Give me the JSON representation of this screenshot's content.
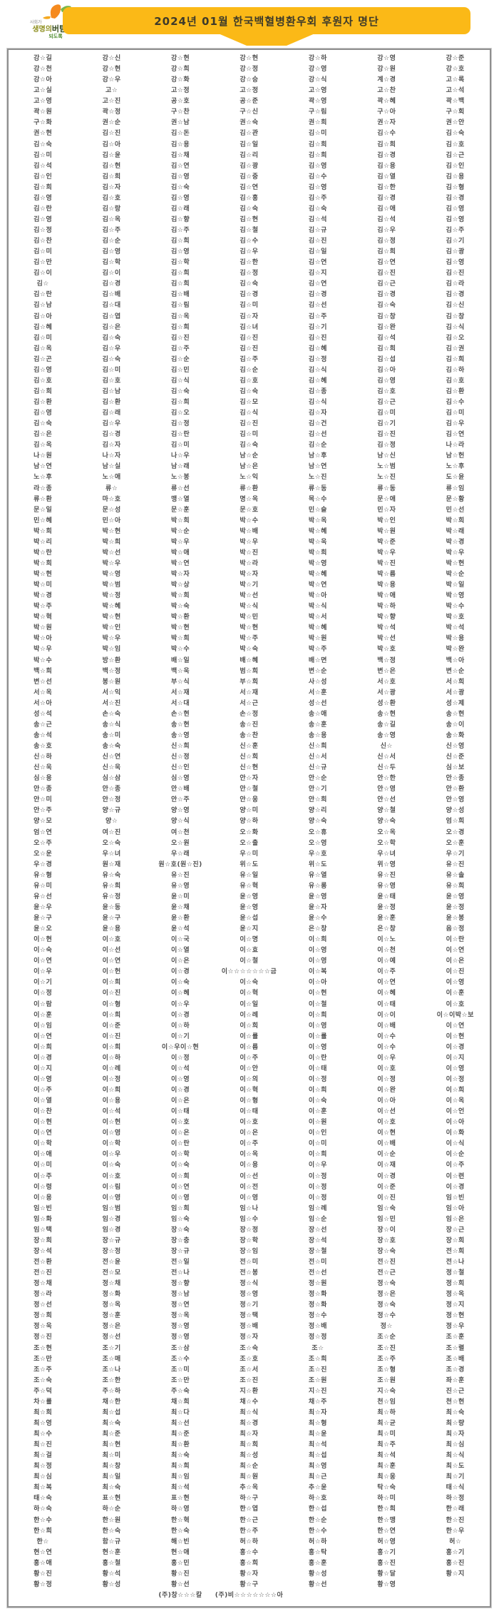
{
  "header": {
    "title": "2024년 01월 한국백혈병환우회 후원자 명단"
  },
  "logo": {
    "text_small": "사회가",
    "text_main_1": "생명의",
    "text_main_2": "버팀목",
    "text_main_3": "이",
    "text_bottom": "되도록"
  },
  "table": {
    "rows": [
      [
        "강☆길",
        "강☆신",
        "강☆현",
        "강☆현",
        "강☆하",
        "강☆영",
        "강☆준"
      ],
      [
        "강☆천",
        "강☆현",
        "강☆희",
        "강☆정",
        "강☆영",
        "강☆원",
        "강☆호"
      ],
      [
        "강☆아",
        "강☆우",
        "강☆화",
        "강☆승",
        "강☆식",
        "계☆경",
        "고☆록"
      ],
      [
        "고☆실",
        "고☆",
        "고☆정",
        "고☆정",
        "고☆영",
        "고☆찬",
        "고☆석"
      ],
      [
        "고☆영",
        "고☆진",
        "공☆호",
        "공☆준",
        "곽☆영",
        "곽☆혜",
        "곽☆백"
      ],
      [
        "곽☆원",
        "곽☆정",
        "구☆찬",
        "구☆신",
        "구☆림",
        "구☆아",
        "구☆회"
      ],
      [
        "구☆화",
        "권☆순",
        "권☆남",
        "권☆숙",
        "권☆희",
        "권☆자",
        "권☆안"
      ],
      [
        "권☆현",
        "김☆진",
        "김☆돈",
        "김☆관",
        "김☆미",
        "김☆수",
        "김☆숙"
      ],
      [
        "김☆숙",
        "김☆아",
        "김☆용",
        "김☆일",
        "김☆희",
        "김☆희",
        "김☆호"
      ],
      [
        "김☆미",
        "김☆윤",
        "김☆채",
        "김☆리",
        "김☆희",
        "김☆경",
        "김☆근"
      ],
      [
        "김☆석",
        "김☆현",
        "김☆연",
        "김☆광",
        "김☆영",
        "김☆용",
        "김☆인"
      ],
      [
        "김☆인",
        "김☆희",
        "김☆영",
        "김☆중",
        "김☆수",
        "김☆열",
        "김☆용"
      ],
      [
        "김☆희",
        "김☆자",
        "김☆숙",
        "김☆연",
        "김☆영",
        "김☆한",
        "김☆형"
      ],
      [
        "김☆영",
        "김☆호",
        "김☆영",
        "김☆홍",
        "김☆주",
        "김☆경",
        "김☆경"
      ],
      [
        "김☆란",
        "김☆랑",
        "김☆래",
        "김☆숙",
        "김☆숙",
        "김☆애",
        "김☆영"
      ],
      [
        "김☆영",
        "김☆옥",
        "김☆향",
        "김☆현",
        "김☆석",
        "김☆석",
        "김☆영"
      ],
      [
        "김☆정",
        "김☆주",
        "김☆주",
        "김☆철",
        "김☆규",
        "김☆우",
        "김☆주"
      ],
      [
        "김☆찬",
        "김☆순",
        "김☆희",
        "김☆수",
        "김☆진",
        "김☆정",
        "김☆기"
      ],
      [
        "김☆미",
        "김☆영",
        "김☆영",
        "김☆우",
        "김☆일",
        "김☆희",
        "김☆광"
      ],
      [
        "김☆만",
        "김☆학",
        "김☆학",
        "김☆한",
        "김☆연",
        "김☆연",
        "김☆영"
      ],
      [
        "김☆이",
        "김☆이",
        "김☆희",
        "김☆정",
        "김☆지",
        "김☆진",
        "김☆진"
      ],
      [
        "김☆",
        "김☆경",
        "김☆희",
        "김☆숙",
        "김☆연",
        "김☆근",
        "김☆라"
      ],
      [
        "김☆란",
        "김☆배",
        "김☆배",
        "김☆경",
        "김☆경",
        "김☆경",
        "김☆경"
      ],
      [
        "김☆남",
        "김☆대",
        "김☆림",
        "김☆미",
        "김☆선",
        "김☆숙",
        "김☆신"
      ],
      [
        "김☆아",
        "김☆엽",
        "김☆옥",
        "김☆자",
        "김☆주",
        "김☆창",
        "김☆창"
      ],
      [
        "김☆혜",
        "김☆은",
        "김☆희",
        "김☆녀",
        "김☆기",
        "김☆완",
        "김☆식"
      ],
      [
        "김☆미",
        "김☆숙",
        "김☆진",
        "김☆진",
        "김☆진",
        "김☆석",
        "김☆오"
      ],
      [
        "김☆옥",
        "김☆우",
        "김☆주",
        "김☆진",
        "김☆혜",
        "김☆희",
        "김☆권"
      ],
      [
        "김☆곤",
        "김☆숙",
        "김☆순",
        "김☆주",
        "김☆정",
        "김☆섭",
        "김☆희"
      ],
      [
        "김☆영",
        "김☆미",
        "김☆민",
        "김☆순",
        "김☆식",
        "김☆아",
        "김☆하"
      ],
      [
        "김☆호",
        "김☆호",
        "김☆식",
        "김☆호",
        "김☆혜",
        "김☆영",
        "김☆호"
      ],
      [
        "김☆희",
        "김☆남",
        "김☆숙",
        "김☆숙",
        "김☆종",
        "김☆호",
        "김☆환"
      ],
      [
        "김☆환",
        "김☆환",
        "김☆희",
        "김☆모",
        "김☆식",
        "김☆근",
        "김☆수"
      ],
      [
        "김☆영",
        "김☆래",
        "김☆오",
        "김☆식",
        "김☆자",
        "김☆미",
        "김☆미"
      ],
      [
        "김☆숙",
        "김☆우",
        "김☆정",
        "김☆진",
        "김☆건",
        "김☆기",
        "김☆우"
      ],
      [
        "김☆은",
        "김☆경",
        "김☆란",
        "김☆미",
        "김☆선",
        "김☆진",
        "김☆연"
      ],
      [
        "김☆옥",
        "김☆자",
        "김☆미",
        "김☆숙",
        "김☆순",
        "김☆정",
        "나☆라"
      ],
      [
        "나☆원",
        "나☆자",
        "나☆우",
        "남☆순",
        "남☆후",
        "남☆신",
        "남☆헌"
      ],
      [
        "남☆연",
        "남☆실",
        "남☆래",
        "남☆은",
        "남☆연",
        "노☆범",
        "노☆후"
      ],
      [
        "노☆후",
        "노☆애",
        "노☆봉",
        "노☆익",
        "노☆진",
        "노☆진",
        "도☆윤"
      ],
      [
        "라☆종",
        "류☆",
        "류☆선",
        "류☆환",
        "류☆동",
        "류☆동",
        "류☆임"
      ],
      [
        "류☆환",
        "마☆호",
        "맹☆열",
        "명☆옥",
        "목☆수",
        "문☆애",
        "문☆황"
      ],
      [
        "문☆일",
        "문☆성",
        "문☆훈",
        "문☆호",
        "민☆슬",
        "민☆자",
        "민☆선"
      ],
      [
        "민☆혜",
        "민☆아",
        "박☆희",
        "박☆수",
        "박☆옥",
        "박☆인",
        "박☆희"
      ],
      [
        "박☆희",
        "박☆현",
        "박☆순",
        "박☆배",
        "박☆혜",
        "박☆원",
        "박☆래"
      ],
      [
        "박☆리",
        "박☆희",
        "박☆우",
        "박☆우",
        "박☆욱",
        "박☆준",
        "박☆경"
      ],
      [
        "박☆란",
        "박☆선",
        "박☆애",
        "박☆진",
        "박☆희",
        "박☆우",
        "박☆우"
      ],
      [
        "박☆희",
        "박☆우",
        "박☆연",
        "박☆라",
        "박☆영",
        "박☆진",
        "박☆현"
      ],
      [
        "박☆현",
        "박☆영",
        "박☆자",
        "박☆자",
        "박☆혜",
        "박☆름",
        "박☆순"
      ],
      [
        "박☆미",
        "박☆범",
        "박☆상",
        "박☆기",
        "박☆연",
        "박☆용",
        "박☆일"
      ],
      [
        "박☆경",
        "박☆정",
        "박☆희",
        "박☆선",
        "박☆아",
        "박☆애",
        "박☆영"
      ],
      [
        "박☆주",
        "박☆혜",
        "박☆숙",
        "박☆식",
        "박☆식",
        "박☆하",
        "박☆수"
      ],
      [
        "박☆혁",
        "박☆현",
        "박☆환",
        "박☆민",
        "박☆서",
        "박☆향",
        "박☆호"
      ],
      [
        "박☆원",
        "박☆인",
        "박☆현",
        "박☆현",
        "박☆혜",
        "박☆석",
        "박☆석"
      ],
      [
        "박☆아",
        "박☆우",
        "박☆희",
        "박☆주",
        "박☆원",
        "박☆선",
        "박☆용"
      ],
      [
        "박☆우",
        "박☆임",
        "박☆수",
        "박☆숙",
        "박☆주",
        "박☆호",
        "박☆완"
      ],
      [
        "박☆수",
        "방☆환",
        "배☆일",
        "배☆혜",
        "배☆면",
        "백☆정",
        "백☆아"
      ],
      [
        "백☆희",
        "백☆정",
        "백☆욱",
        "범☆희",
        "변☆순",
        "변☆은",
        "변☆순"
      ],
      [
        "변☆선",
        "봉☆원",
        "부☆식",
        "부☆희",
        "사☆성",
        "서☆호",
        "서☆희"
      ],
      [
        "서☆옥",
        "서☆익",
        "서☆재",
        "서☆재",
        "서☆훈",
        "서☆광",
        "서☆광"
      ],
      [
        "서☆아",
        "서☆진",
        "서☆대",
        "서☆근",
        "성☆선",
        "성☆환",
        "성☆제"
      ],
      [
        "성☆석",
        "손☆숙",
        "손☆현",
        "손☆정",
        "송☆애",
        "송☆현",
        "송☆현"
      ],
      [
        "송☆근",
        "송☆식",
        "송☆현",
        "송☆진",
        "송☆훈",
        "송☆길",
        "송☆이"
      ],
      [
        "송☆석",
        "송☆미",
        "송☆영",
        "송☆찬",
        "송☆용",
        "송☆영",
        "송☆화"
      ],
      [
        "송☆호",
        "송☆숙",
        "신☆희",
        "신☆훈",
        "신☆희",
        "신☆",
        "신☆영"
      ],
      [
        "신☆하",
        "신☆연",
        "신☆정",
        "신☆희",
        "신☆서",
        "신☆서",
        "신☆준"
      ],
      [
        "신☆욱",
        "신☆욱",
        "신☆인",
        "신☆현",
        "신☆규",
        "신☆두",
        "심☆보"
      ],
      [
        "심☆용",
        "심☆삼",
        "심☆영",
        "안☆자",
        "안☆순",
        "안☆한",
        "안☆종"
      ],
      [
        "안☆종",
        "안☆종",
        "안☆배",
        "안☆철",
        "안☆기",
        "안☆영",
        "안☆환"
      ],
      [
        "안☆미",
        "안☆정",
        "안☆주",
        "안☆웅",
        "안☆희",
        "안☆선",
        "안☆영"
      ],
      [
        "안☆주",
        "양☆규",
        "양☆영",
        "양☆미",
        "양☆리",
        "양☆철",
        "양☆성"
      ],
      [
        "양☆모",
        "양☆",
        "양☆식",
        "양☆하",
        "양☆숙",
        "양☆숙",
        "엄☆희"
      ],
      [
        "엄☆연",
        "여☆진",
        "여☆천",
        "오☆화",
        "오☆휴",
        "오☆옥",
        "오☆경"
      ],
      [
        "오☆주",
        "오☆숙",
        "오☆원",
        "오☆출",
        "오☆영",
        "오☆학",
        "오☆훈"
      ],
      [
        "오☆운",
        "우☆녀",
        "우☆래",
        "우☆미",
        "우☆호",
        "우☆녀",
        "우☆기"
      ],
      [
        "우☆경",
        "원☆재",
        "원☆호(원☆진)",
        "위☆도",
        "위☆도",
        "위☆영",
        "유☆진"
      ],
      [
        "유☆형",
        "유☆숙",
        "유☆진",
        "유☆일",
        "유☆열",
        "유☆진",
        "유☆솔"
      ],
      [
        "유☆미",
        "유☆희",
        "유☆영",
        "유☆혁",
        "유☆롱",
        "유☆영",
        "유☆희"
      ],
      [
        "유☆선",
        "유☆정",
        "윤☆미",
        "윤☆영",
        "윤☆영",
        "윤☆태",
        "윤☆영"
      ],
      [
        "윤☆우",
        "윤☆동",
        "윤☆채",
        "윤☆영",
        "윤☆자",
        "윤☆정",
        "윤☆정"
      ],
      [
        "윤☆구",
        "윤☆구",
        "윤☆환",
        "윤☆섭",
        "윤☆수",
        "윤☆훈",
        "윤☆봉"
      ],
      [
        "윤☆오",
        "윤☆용",
        "윤☆석",
        "윤☆지",
        "은☆창",
        "은☆창",
        "음☆정"
      ],
      [
        "이☆현",
        "이☆호",
        "이☆국",
        "이☆명",
        "이☆희",
        "이☆노",
        "이☆란"
      ],
      [
        "이☆숙",
        "이☆선",
        "이☆열",
        "이☆효",
        "이☆영",
        "이☆천",
        "이☆연"
      ],
      [
        "이☆연",
        "이☆연",
        "이☆은",
        "이☆철",
        "이☆영",
        "이☆예",
        "이☆은"
      ],
      [
        "이☆우",
        "이☆헌",
        "이☆경",
        "이☆☆☆☆☆☆☆금",
        "이☆복",
        "이☆주",
        "이☆진"
      ],
      [
        "이☆기",
        "이☆희",
        "이☆숙",
        "이☆숙",
        "이☆아",
        "이☆연",
        "이☆영"
      ],
      [
        "이☆정",
        "이☆진",
        "이☆혜",
        "이☆혁",
        "이☆현",
        "이☆혜",
        "이☆훈"
      ],
      [
        "이☆람",
        "이☆형",
        "이☆우",
        "이☆일",
        "이☆철",
        "이☆태",
        "이☆호"
      ],
      [
        "이☆훈",
        "이☆희",
        "이☆경",
        "이☆례",
        "이☆희",
        "이☆이",
        "이☆이박☆보"
      ],
      [
        "이☆임",
        "이☆준",
        "이☆하",
        "이☆희",
        "이☆영",
        "이☆배",
        "이☆연"
      ],
      [
        "이☆연",
        "이☆진",
        "이☆기",
        "이☆률",
        "이☆률",
        "이☆수",
        "이☆현"
      ],
      [
        "이☆희",
        "이☆희",
        "이☆우이☆현",
        "이☆름",
        "이☆영",
        "이☆수",
        "이☆경"
      ],
      [
        "이☆경",
        "이☆하",
        "이☆정",
        "이☆주",
        "이☆란",
        "이☆우",
        "이☆지"
      ],
      [
        "이☆지",
        "이☆례",
        "이☆석",
        "이☆안",
        "이☆태",
        "이☆호",
        "이☆영"
      ],
      [
        "이☆영",
        "이☆정",
        "이☆영",
        "이☆의",
        "이☆정",
        "이☆정",
        "이☆정"
      ],
      [
        "이☆주",
        "이☆희",
        "이☆경",
        "이☆혁",
        "이☆희",
        "이☆완",
        "이☆희"
      ],
      [
        "이☆열",
        "이☆용",
        "이☆은",
        "이☆형",
        "이☆숙",
        "이☆아",
        "이☆옥"
      ],
      [
        "이☆찬",
        "이☆석",
        "이☆태",
        "이☆태",
        "이☆훈",
        "이☆선",
        "이☆언"
      ],
      [
        "이☆현",
        "이☆현",
        "이☆호",
        "이☆호",
        "이☆원",
        "이☆호",
        "이☆아"
      ],
      [
        "이☆연",
        "이☆영",
        "이☆은",
        "이☆은",
        "이☆인",
        "이☆현",
        "이☆화"
      ],
      [
        "이☆학",
        "이☆학",
        "이☆란",
        "이☆주",
        "이☆미",
        "이☆배",
        "이☆식"
      ],
      [
        "이☆애",
        "이☆우",
        "이☆학",
        "이☆옥",
        "이☆희",
        "이☆순",
        "이☆순"
      ],
      [
        "이☆미",
        "이☆숙",
        "이☆숙",
        "이☆용",
        "이☆우",
        "이☆재",
        "이☆주"
      ],
      [
        "이☆주",
        "이☆호",
        "이☆희",
        "이☆선",
        "이☆정",
        "이☆경",
        "이☆련"
      ],
      [
        "이☆령",
        "이☆림",
        "이☆연",
        "이☆전",
        "이☆정",
        "이☆준",
        "이☆경"
      ],
      [
        "이☆용",
        "이☆영",
        "이☆영",
        "이☆영",
        "이☆정",
        "이☆진",
        "임☆빈"
      ],
      [
        "임☆빈",
        "임☆범",
        "임☆희",
        "임☆나",
        "임☆례",
        "임☆숙",
        "임☆아"
      ],
      [
        "임☆화",
        "임☆경",
        "임☆숙",
        "임☆수",
        "임☆순",
        "임☆민",
        "임☆은"
      ],
      [
        "임☆택",
        "임☆경",
        "장☆숙",
        "장☆정",
        "장☆선",
        "장☆이",
        "장☆근"
      ],
      [
        "장☆희",
        "장☆규",
        "장☆충",
        "장☆학",
        "장☆석",
        "장☆호",
        "장☆희"
      ],
      [
        "장☆석",
        "장☆정",
        "장☆규",
        "장☆임",
        "장☆철",
        "장☆숙",
        "전☆희"
      ],
      [
        "전☆환",
        "전☆윤",
        "전☆일",
        "전☆미",
        "전☆미",
        "전☆진",
        "전☆나"
      ],
      [
        "전☆진",
        "전☆모",
        "전☆나",
        "전☆봉",
        "전☆선",
        "전☆근",
        "정☆철"
      ],
      [
        "정☆채",
        "정☆채",
        "정☆향",
        "정☆식",
        "정☆원",
        "정☆숙",
        "정☆희"
      ],
      [
        "정☆라",
        "정☆화",
        "정☆남",
        "정☆영",
        "정☆화",
        "정☆은",
        "정☆옥"
      ],
      [
        "정☆선",
        "정☆옥",
        "정☆연",
        "정☆기",
        "정☆화",
        "정☆숙",
        "정☆지"
      ],
      [
        "정☆희",
        "정☆훈",
        "정☆옥",
        "정☆택",
        "정☆수",
        "정☆수",
        "정☆현"
      ],
      [
        "정☆욱",
        "정☆은",
        "정☆영",
        "정☆배",
        "정☆배",
        "정☆",
        "정☆우"
      ],
      [
        "정☆진",
        "정☆선",
        "정☆영",
        "정☆자",
        "정☆정",
        "조☆순",
        "조☆훈"
      ],
      [
        "조☆현",
        "조☆기",
        "조☆삼",
        "조☆숙",
        "조☆",
        "조☆진",
        "조☆렬"
      ],
      [
        "조☆만",
        "조☆매",
        "조☆수",
        "조☆호",
        "조☆희",
        "조☆주",
        "조☆배"
      ],
      [
        "조☆주",
        "조☆나",
        "조☆미",
        "조☆서",
        "조☆진",
        "조☆형",
        "조☆경"
      ],
      [
        "조☆숙",
        "조☆한",
        "조☆만",
        "조☆진",
        "조☆원",
        "조☆원",
        "좌☆훈"
      ],
      [
        "주☆덕",
        "주☆하",
        "주☆숙",
        "지☆환",
        "지☆진",
        "지☆숙",
        "진☆근"
      ],
      [
        "차☆률",
        "채☆한",
        "채☆희",
        "채☆수",
        "채☆주",
        "천☆임",
        "천☆현"
      ],
      [
        "최☆희",
        "최☆섭",
        "최☆다",
        "최☆식",
        "최☆자",
        "최☆하",
        "최☆숙"
      ],
      [
        "최☆영",
        "최☆숙",
        "최☆선",
        "최☆경",
        "최☆형",
        "최☆균",
        "최☆량"
      ],
      [
        "최☆수",
        "최☆준",
        "최☆준",
        "최☆자",
        "최☆윤",
        "최☆미",
        "최☆자"
      ],
      [
        "최☆진",
        "최☆현",
        "최☆환",
        "최☆희",
        "최☆석",
        "최☆주",
        "최☆심"
      ],
      [
        "최☆걸",
        "최☆미",
        "최☆숙",
        "최☆성",
        "최☆섭",
        "최☆석",
        "최☆식"
      ],
      [
        "최☆정",
        "최☆창",
        "최☆희",
        "최☆순",
        "최☆영",
        "최☆훈",
        "최☆도"
      ],
      [
        "최☆심",
        "최☆일",
        "최☆임",
        "최☆원",
        "최☆근",
        "최☆웅",
        "최☆기"
      ],
      [
        "최☆복",
        "최☆숙",
        "최☆석",
        "추☆옥",
        "추☆윤",
        "탁☆숙",
        "태☆식"
      ],
      [
        "태☆숙",
        "표☆현",
        "표☆현",
        "하☆구",
        "하☆호",
        "하☆미",
        "하☆정"
      ],
      [
        "하☆숙",
        "하☆순",
        "하☆영",
        "한☆엽",
        "한☆섭",
        "한☆희",
        "한☆래"
      ],
      [
        "한☆수",
        "한☆원",
        "한☆혁",
        "한☆근",
        "한☆순",
        "한☆맹",
        "한☆진"
      ],
      [
        "한☆희",
        "한☆숙",
        "한☆숙",
        "한☆주",
        "한☆수",
        "한☆연",
        "한☆우"
      ],
      [
        "한☆",
        "함☆규",
        "해☆빈",
        "허☆하",
        "허☆하",
        "허☆영",
        "허☆"
      ],
      [
        "현☆연",
        "현☆훈",
        "현☆애",
        "홍☆수",
        "홍☆탁",
        "홍☆기",
        "홍☆기"
      ],
      [
        "홍☆애",
        "홍☆철",
        "홍☆민",
        "홍☆희",
        "홍☆훈",
        "홍☆진",
        "홍☆진"
      ],
      [
        "황☆진",
        "황☆석",
        "황☆진",
        "황☆자",
        "황☆성",
        "황☆달",
        "황☆지"
      ],
      [
        "황☆정",
        "황☆성",
        "황☆선",
        "황☆구",
        "황☆선",
        "황☆영",
        ""
      ],
      [
        "",
        "",
        "(주)창☆☆☆칼",
        "(주)비☆☆☆☆☆☆☆아",
        "",
        "",
        ""
      ]
    ]
  },
  "colors": {
    "banner_yellow": "#fbb917",
    "border_gray": "#8f8f8f",
    "name_text": "#4f4f4f",
    "logo_orange": "#f58a1f",
    "logo_green": "#7ab648"
  }
}
